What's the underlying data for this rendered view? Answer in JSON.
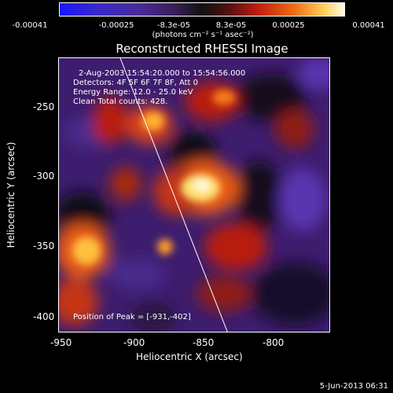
{
  "colorbar": {
    "ticks": [
      "-0.00041",
      "-0.00025",
      "-8.3e-05",
      "8.3e-05",
      "0.00025",
      "0.00041"
    ],
    "units": "(photons cm⁻² s⁻¹ asec⁻²)"
  },
  "title": "Reconstructed RHESSI Image",
  "annotations": {
    "time_range": "2-Aug-2003 15:54:20.000 to 15:54:56.000",
    "detectors": "Detectors: 4F 5F 6F 7F 8F, Att 0",
    "energy_range": "Energy Range: 12.0 - 25.0 keV",
    "clean_counts": "Clean     Total counts: 428.",
    "peak_position": "Position of Peak = [-931,-402]"
  },
  "axes": {
    "xlabel": "Heliocentric X (arcsec)",
    "ylabel": "Heliocentric Y (arcsec)",
    "xticks": [
      "-950",
      "-900",
      "-850",
      "-800"
    ],
    "yticks": [
      "-250",
      "-300",
      "-350",
      "-400"
    ]
  },
  "footer": {
    "date": "5-Jun-2013 06:31"
  }
}
